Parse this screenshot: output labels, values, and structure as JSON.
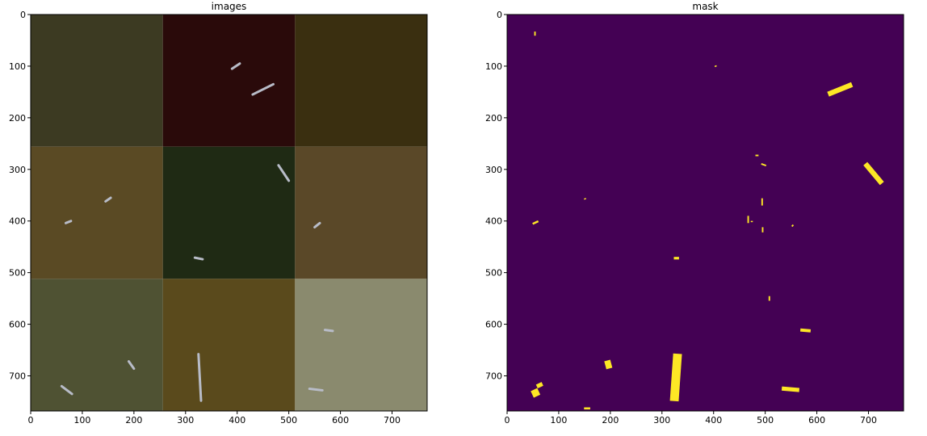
{
  "chart_data": [
    {
      "type": "image",
      "title": "images",
      "xlabel": "",
      "ylabel": "",
      "xlim": [
        0,
        768
      ],
      "ylim": [
        768,
        0
      ],
      "xticks": [
        0,
        100,
        200,
        300,
        400,
        500,
        600,
        700
      ],
      "yticks": [
        0,
        100,
        200,
        300,
        400,
        500,
        600,
        700
      ],
      "grid": "3x3 mosaic of aerial ship images, 256 px tiles",
      "tile_colors": [
        [
          "#3c3a22",
          "#2a0a0a",
          "#3a2f10"
        ],
        [
          "#5a4a24",
          "#1f2a14",
          "#5a4828"
        ],
        [
          "#4f5233",
          "#5a4a1c",
          "#8a8a6e"
        ]
      ],
      "ships": [
        {
          "x": [
            390,
            405
          ],
          "y": [
            105,
            95
          ]
        },
        {
          "x": [
            430,
            470
          ],
          "y": [
            155,
            135
          ]
        },
        {
          "x": [
            145,
            155
          ],
          "y": [
            362,
            355
          ]
        },
        {
          "x": [
            68,
            78
          ],
          "y": [
            404,
            400
          ]
        },
        {
          "x": [
            480,
            500
          ],
          "y": [
            292,
            322
          ]
        },
        {
          "x": [
            550,
            560
          ],
          "y": [
            412,
            404
          ]
        },
        {
          "x": [
            325,
            330
          ],
          "y": [
            658,
            748
          ]
        },
        {
          "x": [
            60,
            80
          ],
          "y": [
            720,
            735
          ]
        },
        {
          "x": [
            190,
            200
          ],
          "y": [
            672,
            686
          ]
        },
        {
          "x": [
            570,
            585
          ],
          "y": [
            611,
            613
          ]
        },
        {
          "x": [
            540,
            565
          ],
          "y": [
            725,
            728
          ]
        },
        {
          "x": [
            318,
            333
          ],
          "y": [
            471,
            474
          ]
        }
      ]
    },
    {
      "type": "image",
      "title": "mask",
      "xlabel": "",
      "ylabel": "",
      "xlim": [
        0,
        768
      ],
      "ylim": [
        768,
        0
      ],
      "xticks": [
        0,
        100,
        200,
        300,
        400,
        500,
        600,
        700
      ],
      "yticks": [
        0,
        100,
        200,
        300,
        400,
        500,
        600,
        700
      ],
      "background_color": "#440154",
      "mask_color": "#fde725",
      "regions": [
        {
          "cx": 54,
          "cy": 37,
          "w": 3,
          "h": 8,
          "angle": 0
        },
        {
          "cx": 404,
          "cy": 100,
          "w": 4,
          "h": 2,
          "angle": -20
        },
        {
          "cx": 645,
          "cy": 145,
          "w": 50,
          "h": 10,
          "angle": -22
        },
        {
          "cx": 484,
          "cy": 273,
          "w": 6,
          "h": 3,
          "angle": 0
        },
        {
          "cx": 497,
          "cy": 291,
          "w": 10,
          "h": 3,
          "angle": 20
        },
        {
          "cx": 710,
          "cy": 308,
          "w": 50,
          "h": 10,
          "angle": 50
        },
        {
          "cx": 151,
          "cy": 357,
          "w": 4,
          "h": 2,
          "angle": -20
        },
        {
          "cx": 494,
          "cy": 363,
          "w": 3,
          "h": 14,
          "angle": 0
        },
        {
          "cx": 467,
          "cy": 397,
          "w": 3,
          "h": 14,
          "angle": 0
        },
        {
          "cx": 474,
          "cy": 401,
          "w": 4,
          "h": 2,
          "angle": 0
        },
        {
          "cx": 55,
          "cy": 403,
          "w": 12,
          "h": 4,
          "angle": -25
        },
        {
          "cx": 553,
          "cy": 409,
          "w": 4,
          "h": 3,
          "angle": -45
        },
        {
          "cx": 495,
          "cy": 417,
          "w": 3,
          "h": 10,
          "angle": 0
        },
        {
          "cx": 328,
          "cy": 472,
          "w": 10,
          "h": 5,
          "angle": 0
        },
        {
          "cx": 508,
          "cy": 550,
          "w": 3,
          "h": 9,
          "angle": 0
        },
        {
          "cx": 578,
          "cy": 612,
          "w": 20,
          "h": 6,
          "angle": 5
        },
        {
          "cx": 196,
          "cy": 678,
          "w": 12,
          "h": 16,
          "angle": -15
        },
        {
          "cx": 327,
          "cy": 703,
          "w": 17,
          "h": 92,
          "angle": 4
        },
        {
          "cx": 63,
          "cy": 718,
          "w": 12,
          "h": 8,
          "angle": -25
        },
        {
          "cx": 55,
          "cy": 733,
          "w": 14,
          "h": 14,
          "angle": -25
        },
        {
          "cx": 549,
          "cy": 726,
          "w": 34,
          "h": 8,
          "angle": 5
        },
        {
          "cx": 155,
          "cy": 763,
          "w": 12,
          "h": 4,
          "angle": 0
        }
      ]
    }
  ]
}
